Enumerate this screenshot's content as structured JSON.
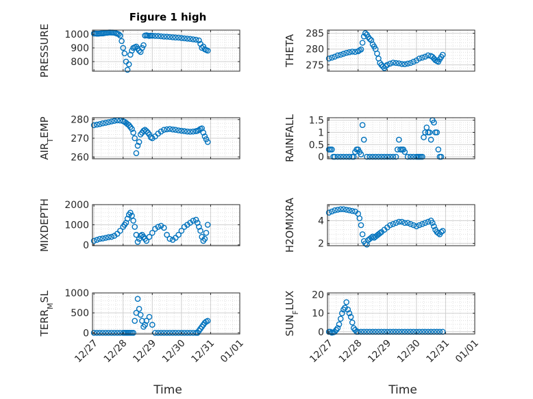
{
  "figure": {
    "title": "Figure 1 high"
  },
  "chart_data": [
    {
      "type": "scatter",
      "id": "pressure",
      "ylabel": "PRESSURE",
      "ylim": [
        730,
        1030
      ],
      "yticks": [
        "800",
        "900",
        "1000"
      ],
      "ytick_values": [
        800,
        900,
        1000
      ],
      "x": [
        0,
        0.05,
        0.1,
        0.15,
        0.2,
        0.25,
        0.3,
        0.35,
        0.4,
        0.45,
        0.5,
        0.55,
        0.6,
        0.65,
        0.7,
        0.75,
        0.8,
        0.85,
        0.9,
        0.95,
        1.0,
        1.05,
        1.1,
        1.15,
        1.2,
        1.25,
        1.3,
        1.35,
        1.4,
        1.45,
        1.5,
        1.55,
        1.6,
        1.65,
        1.7,
        1.75,
        1.8,
        1.85,
        1.9,
        1.95,
        2.0,
        2.1,
        2.2,
        2.3,
        2.4,
        2.5,
        2.6,
        2.7,
        2.8,
        2.9,
        3.0,
        3.1,
        3.2,
        3.3,
        3.4,
        3.5,
        3.6,
        3.65,
        3.7,
        3.75,
        3.8,
        3.85,
        3.9
      ],
      "y": [
        1005,
        1005,
        1004,
        1004,
        1005,
        1006,
        1006,
        1008,
        1010,
        1010,
        1012,
        1013,
        1012,
        1012,
        1011,
        1008,
        1004,
        1000,
        990,
        950,
        900,
        860,
        800,
        740,
        780,
        850,
        880,
        900,
        905,
        910,
        895,
        880,
        870,
        900,
        920,
        990,
        992,
        990,
        988,
        990,
        989,
        988,
        987,
        985,
        983,
        982,
        980,
        978,
        976,
        975,
        972,
        970,
        968,
        966,
        963,
        960,
        955,
        930,
        900,
        910,
        890,
        885,
        880
      ]
    },
    {
      "type": "scatter",
      "id": "theta",
      "ylabel": "THETA",
      "ylim": [
        273,
        286
      ],
      "yticks": [
        "275",
        "280",
        "285"
      ],
      "ytick_values": [
        275,
        280,
        285
      ],
      "x": [
        0,
        0.1,
        0.2,
        0.3,
        0.4,
        0.5,
        0.6,
        0.7,
        0.8,
        0.9,
        1.0,
        1.05,
        1.1,
        1.15,
        1.2,
        1.25,
        1.3,
        1.35,
        1.4,
        1.45,
        1.5,
        1.55,
        1.6,
        1.65,
        1.7,
        1.75,
        1.8,
        1.85,
        1.9,
        1.95,
        2.0,
        2.1,
        2.2,
        2.3,
        2.4,
        2.5,
        2.6,
        2.7,
        2.8,
        2.9,
        3.0,
        3.1,
        3.2,
        3.3,
        3.4,
        3.5,
        3.55,
        3.6,
        3.65,
        3.7,
        3.75,
        3.8,
        3.85,
        3.9
      ],
      "y": [
        277,
        277.3,
        277.6,
        278,
        278.2,
        278.5,
        278.8,
        279,
        279.2,
        279.1,
        279.3,
        279.6,
        279.9,
        282,
        284,
        285,
        284.6,
        283.8,
        283.2,
        282.8,
        281.5,
        280.8,
        280,
        278.6,
        277,
        275.6,
        275,
        274.5,
        274,
        274.6,
        275,
        275.4,
        275.7,
        275.6,
        275.5,
        275.3,
        275.2,
        275.4,
        275.6,
        276,
        276.4,
        277,
        277.3,
        277.6,
        278,
        277.8,
        277.5,
        277,
        276.5,
        276.2,
        276,
        276.8,
        277.5,
        278.2
      ]
    },
    {
      "type": "scatter",
      "id": "air_temp",
      "ylabel": "AIR_TEMP",
      "ylim": [
        259,
        281
      ],
      "yticks": [
        "260",
        "270",
        "280"
      ],
      "ytick_values": [
        260,
        270,
        280
      ],
      "x": [
        0,
        0.1,
        0.2,
        0.3,
        0.4,
        0.5,
        0.6,
        0.7,
        0.8,
        0.9,
        1.0,
        1.05,
        1.1,
        1.15,
        1.2,
        1.25,
        1.3,
        1.35,
        1.4,
        1.45,
        1.5,
        1.55,
        1.6,
        1.65,
        1.7,
        1.75,
        1.8,
        1.85,
        1.9,
        1.95,
        2.0,
        2.1,
        2.2,
        2.3,
        2.4,
        2.5,
        2.6,
        2.7,
        2.8,
        2.9,
        3.0,
        3.1,
        3.2,
        3.3,
        3.4,
        3.5,
        3.55,
        3.6,
        3.65,
        3.7,
        3.75,
        3.8,
        3.85,
        3.9
      ],
      "y": [
        277,
        277.3,
        277.6,
        278,
        278.3,
        278.6,
        279,
        279.3,
        279.6,
        279.5,
        279.2,
        278.8,
        278.2,
        277.6,
        277,
        276,
        275,
        273,
        270,
        262,
        266,
        268,
        272,
        273,
        274,
        274.5,
        273.8,
        273,
        272,
        270.5,
        270,
        271,
        272.5,
        273.6,
        274.5,
        274.8,
        275,
        274.7,
        274.5,
        274.2,
        274,
        273.8,
        273.6,
        273.5,
        273.6,
        273.8,
        274,
        274.4,
        275,
        275.3,
        273,
        271,
        269.5,
        268
      ]
    },
    {
      "type": "scatter",
      "id": "rainfall",
      "ylabel": "RAINFALL",
      "ylim": [
        -0.08,
        1.6
      ],
      "yticks": [
        "0",
        "0.5",
        "1",
        "1.5"
      ],
      "ytick_values": [
        0,
        0.5,
        1,
        1.5
      ],
      "x": [
        0,
        0.05,
        0.1,
        0.15,
        0.2,
        0.3,
        0.4,
        0.5,
        0.6,
        0.7,
        0.8,
        0.85,
        0.9,
        0.95,
        1.0,
        1.05,
        1.1,
        1.15,
        1.2,
        1.3,
        1.4,
        1.5,
        1.6,
        1.7,
        1.8,
        1.9,
        2.0,
        2.1,
        2.2,
        2.3,
        2.35,
        2.4,
        2.45,
        2.5,
        2.55,
        2.6,
        2.7,
        2.8,
        2.9,
        3.0,
        3.05,
        3.1,
        3.15,
        3.2,
        3.25,
        3.3,
        3.35,
        3.4,
        3.45,
        3.5,
        3.55,
        3.6,
        3.65,
        3.7,
        3.75,
        3.8,
        3.85
      ],
      "y": [
        0.3,
        0.3,
        0.3,
        0,
        0,
        0,
        0,
        0,
        0,
        0,
        0,
        0,
        0.2,
        0.3,
        0.3,
        0.2,
        0.1,
        1.3,
        0.7,
        0,
        0,
        0,
        0,
        0,
        0,
        0,
        0,
        0,
        0,
        0,
        0.3,
        0.7,
        0.3,
        0.3,
        0.3,
        0.2,
        0,
        0,
        0,
        0,
        0,
        0,
        0,
        0,
        0.8,
        1.0,
        1.2,
        1.0,
        1.0,
        0.7,
        1.5,
        1.4,
        1.0,
        1.0,
        0.3,
        0,
        0
      ]
    },
    {
      "type": "scatter",
      "id": "mixdepth",
      "ylabel": "MIXDEPTH",
      "ylim": [
        -40,
        2000
      ],
      "yticks": [
        "0",
        "1000",
        "2000"
      ],
      "ytick_values": [
        0,
        1000,
        2000
      ],
      "x": [
        0,
        0.1,
        0.2,
        0.3,
        0.4,
        0.5,
        0.6,
        0.7,
        0.8,
        0.9,
        1.0,
        1.05,
        1.1,
        1.15,
        1.2,
        1.25,
        1.3,
        1.35,
        1.4,
        1.45,
        1.5,
        1.55,
        1.6,
        1.65,
        1.7,
        1.75,
        1.8,
        1.9,
        2.0,
        2.1,
        2.2,
        2.3,
        2.4,
        2.5,
        2.6,
        2.7,
        2.8,
        2.9,
        3.0,
        3.1,
        3.2,
        3.3,
        3.4,
        3.5,
        3.55,
        3.6,
        3.65,
        3.7,
        3.75,
        3.8,
        3.85,
        3.9
      ],
      "y": [
        200,
        250,
        300,
        320,
        350,
        380,
        400,
        450,
        550,
        700,
        900,
        1000,
        1100,
        1300,
        1500,
        1600,
        1450,
        1200,
        900,
        500,
        150,
        300,
        450,
        500,
        400,
        300,
        200,
        400,
        600,
        800,
        900,
        950,
        850,
        500,
        300,
        250,
        350,
        500,
        700,
        900,
        1000,
        1100,
        1200,
        1250,
        1100,
        900,
        700,
        400,
        200,
        300,
        600,
        1000
      ]
    },
    {
      "type": "scatter",
      "id": "h2omixra",
      "ylabel": "H2OMIXRA",
      "ylim": [
        1.8,
        5.4
      ],
      "yticks": [
        "2",
        "4"
      ],
      "ytick_values": [
        2,
        4
      ],
      "x": [
        0,
        0.1,
        0.2,
        0.3,
        0.4,
        0.5,
        0.6,
        0.7,
        0.8,
        0.9,
        1.0,
        1.05,
        1.1,
        1.15,
        1.2,
        1.25,
        1.3,
        1.35,
        1.4,
        1.45,
        1.5,
        1.55,
        1.6,
        1.65,
        1.7,
        1.75,
        1.8,
        1.9,
        2.0,
        2.1,
        2.2,
        2.3,
        2.4,
        2.5,
        2.6,
        2.7,
        2.8,
        2.9,
        3.0,
        3.1,
        3.2,
        3.3,
        3.4,
        3.5,
        3.55,
        3.6,
        3.65,
        3.7,
        3.75,
        3.8,
        3.85,
        3.9
      ],
      "y": [
        4.7,
        4.8,
        4.9,
        4.95,
        5.0,
        5.0,
        4.95,
        4.9,
        4.85,
        4.8,
        4.6,
        4.2,
        3.6,
        2.8,
        2.2,
        2.0,
        1.9,
        2.3,
        2.4,
        2.5,
        2.6,
        2.5,
        2.6,
        2.7,
        2.8,
        2.9,
        3.0,
        3.2,
        3.4,
        3.6,
        3.7,
        3.8,
        3.9,
        3.9,
        3.8,
        3.8,
        3.7,
        3.6,
        3.5,
        3.6,
        3.7,
        3.8,
        3.9,
        4.0,
        3.8,
        3.5,
        3.2,
        3.0,
        2.9,
        2.8,
        3.0,
        3.1
      ]
    },
    {
      "type": "scatter",
      "id": "terr_msl",
      "ylabel": "TERR_MSL",
      "ylim": [
        -30,
        1000
      ],
      "yticks": [
        "0",
        "500",
        "1000"
      ],
      "ytick_values": [
        0,
        500,
        1000
      ],
      "x": [
        0,
        0.1,
        0.2,
        0.3,
        0.4,
        0.5,
        0.6,
        0.7,
        0.8,
        0.9,
        1.0,
        1.05,
        1.1,
        1.15,
        1.2,
        1.25,
        1.3,
        1.35,
        1.4,
        1.45,
        1.5,
        1.55,
        1.6,
        1.65,
        1.7,
        1.75,
        1.8,
        1.9,
        2.0,
        2.1,
        2.2,
        2.3,
        2.4,
        2.5,
        2.6,
        2.7,
        2.8,
        2.9,
        3.0,
        3.1,
        3.2,
        3.3,
        3.4,
        3.5,
        3.55,
        3.6,
        3.65,
        3.7,
        3.75,
        3.8,
        3.85,
        3.9
      ],
      "y": [
        0,
        0,
        0,
        0,
        0,
        0,
        0,
        0,
        0,
        0,
        0,
        0,
        0,
        0,
        0,
        0,
        0,
        0,
        300,
        500,
        850,
        600,
        450,
        300,
        150,
        200,
        300,
        400,
        200,
        0,
        0,
        0,
        0,
        0,
        0,
        0,
        0,
        0,
        0,
        0,
        0,
        0,
        0,
        0,
        0,
        50,
        100,
        150,
        200,
        250,
        280,
        300
      ]
    },
    {
      "type": "scatter",
      "id": "sun_flux",
      "ylabel": "SUN_FLUX",
      "ylim": [
        -1.2,
        21
      ],
      "yticks": [
        "0",
        "10",
        "20"
      ],
      "ytick_values": [
        0,
        10,
        20
      ],
      "x": [
        0,
        0.05,
        0.1,
        0.15,
        0.2,
        0.25,
        0.3,
        0.35,
        0.4,
        0.45,
        0.5,
        0.55,
        0.6,
        0.65,
        0.7,
        0.75,
        0.8,
        0.85,
        0.9,
        0.95,
        1.0,
        1.1,
        1.2,
        1.3,
        1.4,
        1.5,
        1.6,
        1.7,
        1.8,
        1.9,
        2.0,
        2.1,
        2.2,
        2.3,
        2.4,
        2.5,
        2.6,
        2.7,
        2.8,
        2.9,
        3.0,
        3.1,
        3.2,
        3.3,
        3.4,
        3.5,
        3.6,
        3.7,
        3.8,
        3.9
      ],
      "y": [
        0,
        0,
        -0.5,
        -0.3,
        0,
        1,
        2,
        4,
        7,
        10,
        12,
        13,
        16,
        12,
        10,
        8,
        5,
        2,
        1,
        0,
        0,
        0,
        0,
        0,
        0,
        0,
        0,
        0,
        0,
        0,
        0,
        0,
        0,
        0,
        0,
        0,
        0,
        0,
        0,
        0,
        0,
        0,
        0,
        0,
        0,
        0,
        0,
        0,
        0,
        0
      ]
    }
  ],
  "x_axis": {
    "label": "Time",
    "ticks": [
      "12/27",
      "12/28",
      "12/29",
      "12/30",
      "12/31",
      "01/01"
    ],
    "tick_values": [
      0,
      1,
      2,
      3,
      4,
      5
    ],
    "xlim": [
      -0.05,
      5.0
    ]
  },
  "colors": {
    "marker": "#0072BD",
    "grid": "#d9d9d9",
    "axis": "#262626"
  }
}
